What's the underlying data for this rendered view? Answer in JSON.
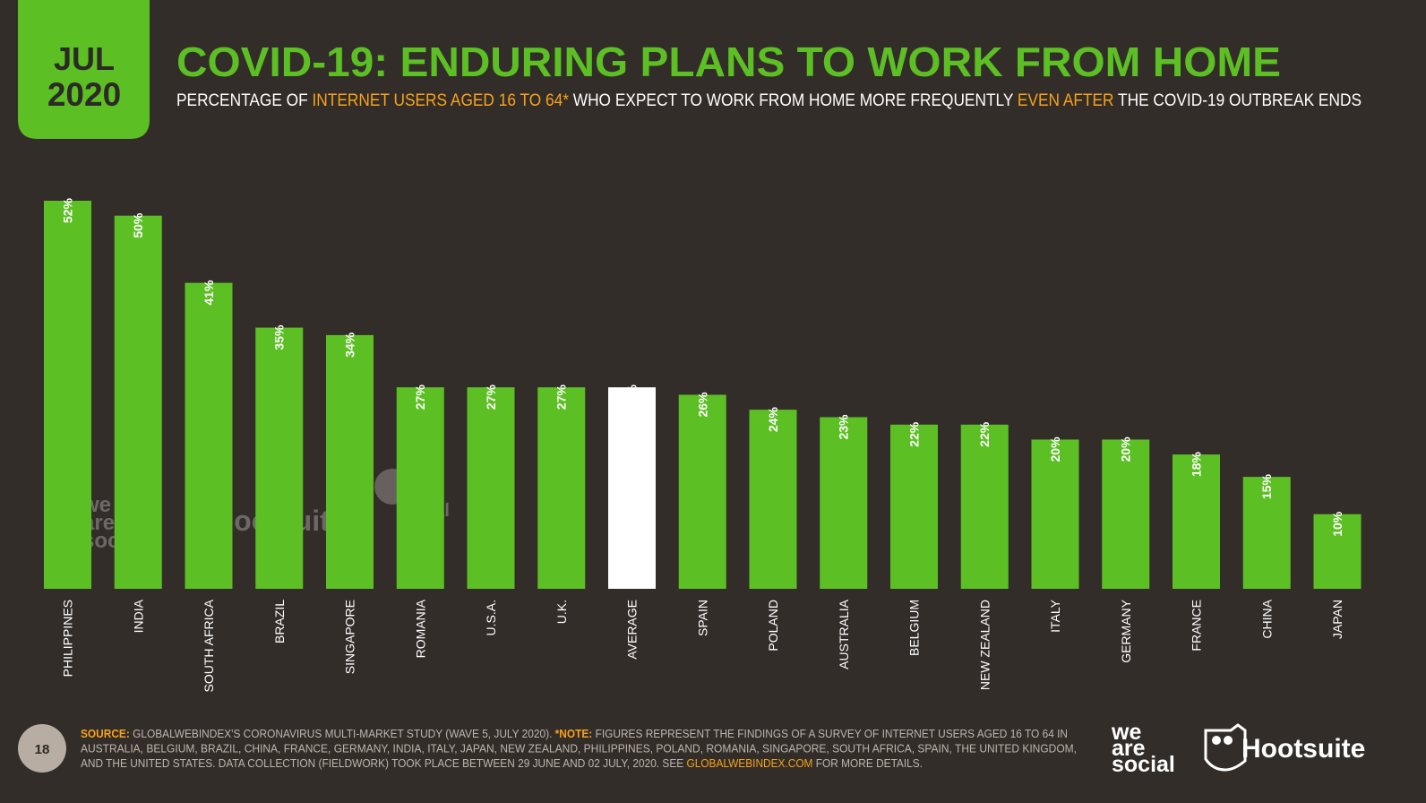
{
  "header": {
    "month": "JUL",
    "year": "2020",
    "page": "18"
  },
  "chart_data": {
    "type": "bar",
    "title": "COVID-19: ENDURING PLANS TO WORK FROM HOME",
    "subtitle": [
      {
        "text": "PERCENTAGE OF ",
        "color": "#ffffff"
      },
      {
        "text": "INTERNET USERS AGED 16 TO 64*",
        "color": "#f7a21b"
      },
      {
        "text": " WHO EXPECT TO WORK FROM HOME MORE FREQUENTLY ",
        "color": "#ffffff"
      },
      {
        "text": "EVEN AFTER",
        "color": "#f7a21b"
      },
      {
        "text": " THE COVID-19 OUTBREAK ENDS",
        "color": "#ffffff"
      }
    ],
    "categories": [
      "PHILIPPINES",
      "INDIA",
      "SOUTH AFRICA",
      "BRAZIL",
      "SINGAPORE",
      "ROMANIA",
      "U.S.A.",
      "U.K.",
      "AVERAGE",
      "SPAIN",
      "POLAND",
      "AUSTRALIA",
      "BELGIUM",
      "NEW ZEALAND",
      "ITALY",
      "GERMANY",
      "FRANCE",
      "CHINA",
      "JAPAN"
    ],
    "values": [
      52,
      50,
      41,
      35,
      34,
      27,
      27,
      27,
      27,
      26,
      24,
      23,
      22,
      22,
      20,
      20,
      18,
      15,
      10
    ],
    "value_labels": [
      "52%",
      "50%",
      "41%",
      "35%",
      "34%",
      "27%",
      "27%",
      "27%",
      "27%",
      "26%",
      "24%",
      "23%",
      "22%",
      "22%",
      "20%",
      "20%",
      "18%",
      "15%",
      "10%"
    ],
    "colors": [
      "#5cbf24",
      "#5cbf24",
      "#5cbf24",
      "#5cbf24",
      "#5cbf24",
      "#5cbf24",
      "#5cbf24",
      "#5cbf24",
      "#ffffff",
      "#5cbf24",
      "#5cbf24",
      "#5cbf24",
      "#5cbf24",
      "#5cbf24",
      "#5cbf24",
      "#5cbf24",
      "#5cbf24",
      "#5cbf24",
      "#5cbf24"
    ]
  },
  "footer": {
    "lines": [
      [
        {
          "text": "SOURCE:",
          "color": "#f7a21b",
          "bold": true
        },
        {
          "text": " GLOBALWEBINDEX'S CORONAVIRUS MULTI-MARKET STUDY (WAVE 5, JULY 2020). ",
          "color": "#bdb5ad",
          "bold": false
        },
        {
          "text": "*NOTE:",
          "color": "#f7a21b",
          "bold": true
        },
        {
          "text": " FIGURES REPRESENT THE FINDINGS OF A SURVEY OF INTERNET USERS AGED 16 TO 64 IN",
          "color": "#bdb5ad",
          "bold": false
        }
      ],
      [
        {
          "text": "AUSTRALIA, BELGIUM, BRAZIL, CHINA, FRANCE, GERMANY, INDIA, ITALY, JAPAN, NEW ZEALAND, PHILIPPINES, POLAND, ROMANIA, SINGAPORE, SOUTH AFRICA, SPAIN, THE UNITED KINGDOM,",
          "color": "#bdb5ad",
          "bold": false
        }
      ],
      [
        {
          "text": "AND THE UNITED STATES. DATA COLLECTION (FIELDWORK) TOOK PLACE BETWEEN 29 JUNE AND 02 JULY, 2020. SEE ",
          "color": "#bdb5ad",
          "bold": false
        },
        {
          "text": "GLOBALWEBINDEX.COM",
          "color": "#f7a21b",
          "bold": false
        },
        {
          "text": " FOR MORE DETAILS.",
          "color": "#bdb5ad",
          "bold": false
        }
      ]
    ]
  },
  "logos": {
    "we_are_social": [
      "we",
      "are",
      "social"
    ],
    "hootsuite": "Hootsuite"
  },
  "watermarks": {
    "we_are_social": [
      "we",
      "are",
      "social"
    ],
    "hootsuite": "Hootsuite",
    "global_web_index": [
      "global",
      "web",
      "index"
    ]
  }
}
